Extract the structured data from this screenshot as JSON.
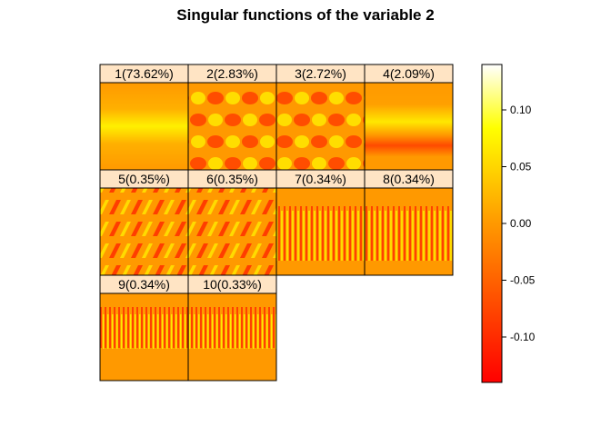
{
  "chart_data": {
    "type": "heatmap",
    "title": "Singular functions of the variable 2",
    "panels": [
      {
        "label": "1(73.62%)",
        "pattern": "band"
      },
      {
        "label": "2(2.83%)",
        "pattern": "checker"
      },
      {
        "label": "3(2.72%)",
        "pattern": "checker"
      },
      {
        "label": "4(2.09%)",
        "pattern": "stripes"
      },
      {
        "label": "5(0.35%)",
        "pattern": "diagonal"
      },
      {
        "label": "6(0.35%)",
        "pattern": "diagonal"
      },
      {
        "label": "7(0.34%)",
        "pattern": "fine"
      },
      {
        "label": "8(0.34%)",
        "pattern": "fine"
      },
      {
        "label": "9(0.34%)",
        "pattern": "fine-low"
      },
      {
        "label": "10(0.33%)",
        "pattern": "fine-low"
      }
    ],
    "layout": {
      "rows": 3,
      "cols": 4
    },
    "colorbar": {
      "range": [
        -0.14,
        0.14
      ],
      "ticks": [
        0.1,
        0.05,
        0.0,
        -0.05,
        -0.1
      ],
      "tick_labels": [
        "0.10",
        "0.05",
        "0.00",
        "-0.05",
        "-0.10"
      ],
      "colors": [
        "#FF0000",
        "#FF8000",
        "#FFFF00",
        "#FFFFFF"
      ]
    }
  },
  "colors": {
    "strip_bg": "#FFE4C4",
    "base": "#FF9900",
    "border": "#000000"
  }
}
